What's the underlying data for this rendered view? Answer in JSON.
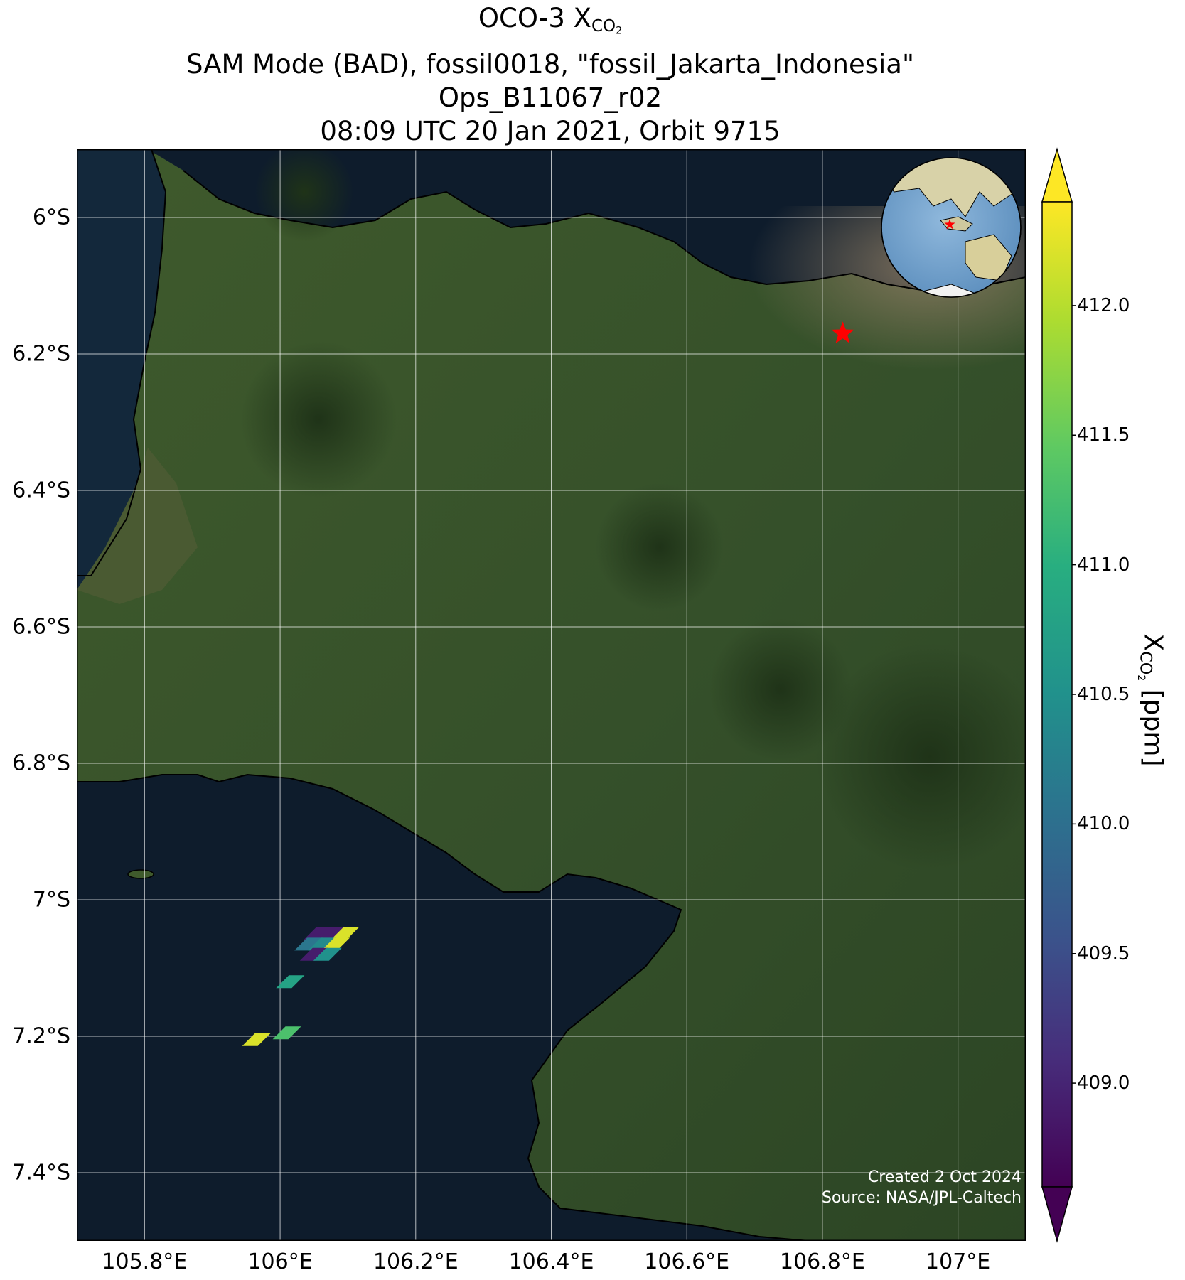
{
  "title": {
    "line1_prefix": "OCO-3 X",
    "line1_sub": "CO",
    "line1_subsub": "2",
    "line2": "SAM Mode (BAD), fossil0018, \"fossil_Jakarta_Indonesia\"",
    "line3": "Ops_B11067_r02",
    "line4": "08:09 UTC 20 Jan 2021, Orbit 9715"
  },
  "map": {
    "lon_range": [
      105.7,
      107.1
    ],
    "lat_range": [
      -7.5,
      -5.9
    ],
    "lat_ticks": [
      {
        "value": -6.0,
        "label": "6°S"
      },
      {
        "value": -6.2,
        "label": "6.2°S"
      },
      {
        "value": -6.4,
        "label": "6.4°S"
      },
      {
        "value": -6.6,
        "label": "6.6°S"
      },
      {
        "value": -6.8,
        "label": "6.8°S"
      },
      {
        "value": -7.0,
        "label": "7°S"
      },
      {
        "value": -7.2,
        "label": "7.2°S"
      },
      {
        "value": -7.4,
        "label": "7.4°S"
      }
    ],
    "lon_ticks": [
      {
        "value": 105.8,
        "label": "105.8°E"
      },
      {
        "value": 106.0,
        "label": "106°E"
      },
      {
        "value": 106.2,
        "label": "106.2°E"
      },
      {
        "value": 106.4,
        "label": "106.4°E"
      },
      {
        "value": 106.6,
        "label": "106.6°E"
      },
      {
        "value": 106.8,
        "label": "106.8°E"
      },
      {
        "value": 107.0,
        "label": "107°E"
      }
    ],
    "grid": true,
    "basemap": "satellite imagery",
    "target_marker": {
      "lon": 106.83,
      "lat": -6.17,
      "color": "#ff0000",
      "icon": "star-icon"
    },
    "inset_globe": {
      "icon": "globe-icon",
      "location": "top-right"
    }
  },
  "chart_data": {
    "type": "scatter",
    "variable": "XCO2",
    "units": "ppm",
    "soundings": [
      {
        "lon": 106.055,
        "lat": -7.05,
        "value": 408.9
      },
      {
        "lon": 106.075,
        "lat": -7.05,
        "value": 408.9
      },
      {
        "lon": 106.095,
        "lat": -7.05,
        "value": 412.2
      },
      {
        "lon": 106.042,
        "lat": -7.065,
        "value": 410.1
      },
      {
        "lon": 106.062,
        "lat": -7.065,
        "value": 410.4
      },
      {
        "lon": 106.082,
        "lat": -7.065,
        "value": 412.2
      },
      {
        "lon": 106.05,
        "lat": -7.08,
        "value": 408.9
      },
      {
        "lon": 106.07,
        "lat": -7.08,
        "value": 410.5
      },
      {
        "lon": 106.015,
        "lat": -7.12,
        "value": 410.8
      },
      {
        "lon": 106.01,
        "lat": -7.195,
        "value": 411.3
      },
      {
        "lon": 105.965,
        "lat": -7.205,
        "value": 412.2
      }
    ]
  },
  "colorbar": {
    "min": 408.6,
    "max": 412.4,
    "ticks": [
      {
        "value": 409.0,
        "label": "409.0"
      },
      {
        "value": 409.5,
        "label": "409.5"
      },
      {
        "value": 410.0,
        "label": "410.0"
      },
      {
        "value": 410.5,
        "label": "410.5"
      },
      {
        "value": 411.0,
        "label": "411.0"
      },
      {
        "value": 411.5,
        "label": "411.5"
      },
      {
        "value": 412.0,
        "label": "412.0"
      }
    ],
    "label_prefix": "X",
    "label_sub": "CO",
    "label_subsub": "2",
    "label_suffix": " [ppm]",
    "colormap": "viridis"
  },
  "credits": {
    "created": "Created 2 Oct 2024",
    "source": "Source: NASA/JPL-Caltech"
  }
}
